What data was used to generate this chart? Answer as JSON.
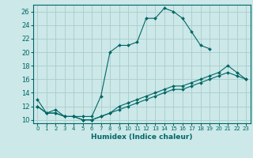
{
  "xlabel": "Humidex (Indice chaleur)",
  "background_color": "#cce8e8",
  "grid_color": "#aacccc",
  "line_color": "#006666",
  "xlim": [
    -0.5,
    23.5
  ],
  "ylim": [
    9.5,
    27
  ],
  "yticks": [
    10,
    12,
    14,
    16,
    18,
    20,
    22,
    24,
    26
  ],
  "xticks": [
    0,
    1,
    2,
    3,
    4,
    5,
    6,
    7,
    8,
    9,
    10,
    11,
    12,
    13,
    14,
    15,
    16,
    17,
    18,
    19,
    20,
    21,
    22,
    23
  ],
  "series": [
    {
      "x": [
        0,
        1,
        2,
        3,
        4,
        5,
        6,
        7,
        8,
        9,
        10,
        11,
        12,
        13,
        14,
        15,
        16,
        17,
        18,
        19
      ],
      "y": [
        13,
        11,
        11.5,
        10.5,
        10.5,
        10.5,
        10.5,
        13.5,
        20,
        21,
        21,
        21.5,
        25,
        25,
        26.5,
        26,
        25,
        23,
        21,
        20.5
      ]
    },
    {
      "x": [
        0,
        1,
        2,
        3,
        4,
        5,
        6,
        7,
        8,
        9,
        10,
        11,
        12,
        13,
        14,
        15,
        16,
        17,
        18,
        19,
        20,
        21,
        22,
        23
      ],
      "y": [
        12,
        11,
        11,
        10.5,
        10.5,
        10,
        10,
        10.5,
        11,
        12,
        12.5,
        13,
        13.5,
        14,
        14.5,
        15,
        15,
        15.5,
        16,
        16.5,
        17,
        18,
        17,
        16
      ]
    },
    {
      "x": [
        0,
        1,
        2,
        3,
        4,
        5,
        6,
        7,
        8,
        9,
        10,
        11,
        12,
        13,
        14,
        15,
        16,
        17,
        18,
        19,
        20,
        21,
        22,
        23
      ],
      "y": [
        12,
        11,
        11,
        10.5,
        10.5,
        10,
        10,
        10.5,
        11,
        11.5,
        12,
        12.5,
        13,
        13.5,
        14,
        14.5,
        14.5,
        15,
        15.5,
        16,
        16.5,
        17,
        16.5,
        16
      ]
    }
  ]
}
